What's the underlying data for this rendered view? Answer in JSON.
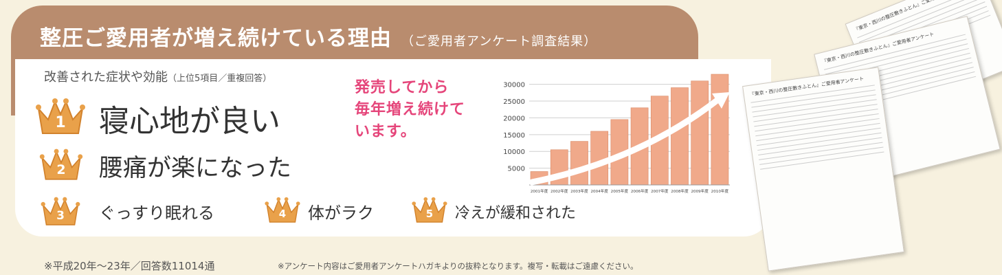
{
  "header": {
    "title": "整圧ご愛用者が増え続けている理由",
    "subtitle": "（ご愛用者アンケート調査結果）"
  },
  "section": {
    "label": "改善された症状や効能",
    "label_note": "（上位5項目／重複回答）"
  },
  "rankings": [
    {
      "rank": "1",
      "text": "寝心地が良い"
    },
    {
      "rank": "2",
      "text": "腰痛が楽になった"
    },
    {
      "rank": "3",
      "text": "ぐっすり眠れる"
    },
    {
      "rank": "4",
      "text": "体がラク"
    },
    {
      "rank": "5",
      "text": "冷えが緩和された"
    }
  ],
  "callout": [
    "発売してから",
    "毎年増え続けて",
    "います。"
  ],
  "chart_data": {
    "type": "bar",
    "categories": [
      "2001年度",
      "2002年度",
      "2003年度",
      "2004年度",
      "2005年度",
      "2006年度",
      "2007年度",
      "2008年度",
      "2009年度",
      "2010年度"
    ],
    "values": [
      4000,
      10500,
      13000,
      16000,
      19500,
      23000,
      26500,
      29000,
      31000,
      33000
    ],
    "yticks": [
      "30000",
      "25000",
      "20000",
      "15000",
      "10000",
      "5000"
    ],
    "ylim": [
      0,
      33000
    ],
    "grid": true,
    "trend_arrow": true
  },
  "survey": {
    "sheet_title": "『東京・西川の整圧敷きふとん』ご愛用者アンケート"
  },
  "footer": {
    "left": "※平成20年～23年／回答数11014通",
    "right": "※アンケート内容はご愛用者アンケートハガキよりの抜粋となります。複写・転載はご遠慮ください。"
  },
  "colors": {
    "header_band": "#b98c6e",
    "crown": "#e9a14a",
    "bar": "#f0a98a",
    "callout": "#e5457a"
  }
}
